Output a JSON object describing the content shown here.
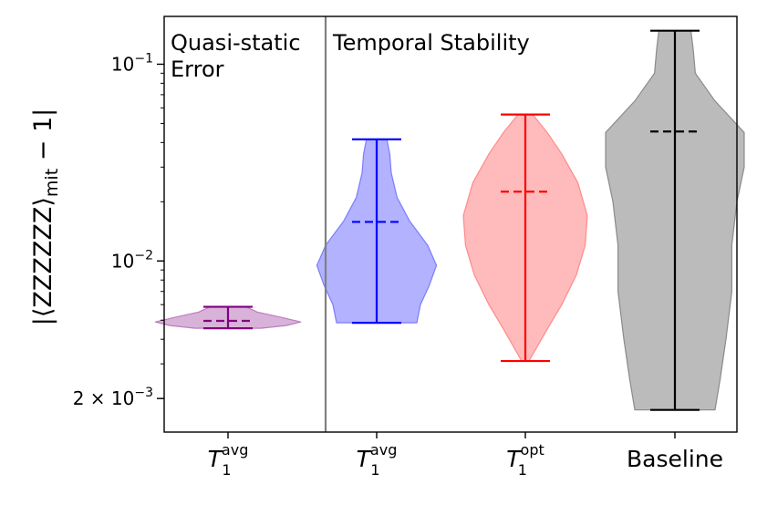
{
  "chart_data": {
    "type": "violin",
    "ylabel": "|⟨ZZZZZZ⟩",
    "ylabel_sub": "mit",
    "ylabel_tail": " − 1|",
    "yscale": "log",
    "ylim": [
      0.00135,
      0.175
    ],
    "yticks": [
      {
        "value": 0.1,
        "mant": "",
        "base": "10",
        "exp": "−1"
      },
      {
        "value": 0.01,
        "mant": "",
        "base": "10",
        "exp": "−2"
      },
      {
        "value": 0.002,
        "mant": "2 × ",
        "base": "10",
        "exp": "−3"
      }
    ],
    "sections": [
      {
        "label_lines": [
          "Quasi-static",
          "Error"
        ]
      },
      {
        "label_lines": [
          "Temporal Stability"
        ]
      }
    ],
    "categories": [
      {
        "main": "T",
        "sub": "1",
        "sup": "avg"
      },
      {
        "main": "T",
        "sub": "1",
        "sup": "avg"
      },
      {
        "main": "T",
        "sub": "1",
        "sup": "opt"
      },
      {
        "main": "Baseline",
        "sub": "",
        "sup": ""
      }
    ],
    "series": [
      {
        "name": "Quasi-static T1 avg",
        "color": "#800080",
        "fill": "#b366b3",
        "min": 0.00455,
        "max": 0.00585,
        "mean": 0.00496,
        "profile": [
          [
            0.00455,
            0.45
          ],
          [
            0.0047,
            0.8
          ],
          [
            0.0049,
            1.0
          ],
          [
            0.0052,
            0.7
          ],
          [
            0.0055,
            0.4
          ],
          [
            0.00585,
            0.25
          ]
        ]
      },
      {
        "name": "Temporal T1 avg",
        "color": "#0000ff",
        "fill": "#6666ff",
        "min": 0.00485,
        "max": 0.0415,
        "mean": 0.0158,
        "profile": [
          [
            0.00485,
            0.55
          ],
          [
            0.006,
            0.6
          ],
          [
            0.0075,
            0.72
          ],
          [
            0.0095,
            0.82
          ],
          [
            0.012,
            0.7
          ],
          [
            0.016,
            0.45
          ],
          [
            0.021,
            0.28
          ],
          [
            0.028,
            0.2
          ],
          [
            0.035,
            0.18
          ],
          [
            0.0415,
            0.14
          ]
        ]
      },
      {
        "name": "Temporal T1 opt",
        "color": "#ff0000",
        "fill": "#ff7777",
        "min": 0.0031,
        "max": 0.0555,
        "mean": 0.0225,
        "profile": [
          [
            0.0031,
            0.05
          ],
          [
            0.0045,
            0.3
          ],
          [
            0.006,
            0.5
          ],
          [
            0.0085,
            0.7
          ],
          [
            0.012,
            0.82
          ],
          [
            0.017,
            0.85
          ],
          [
            0.025,
            0.72
          ],
          [
            0.035,
            0.5
          ],
          [
            0.045,
            0.3
          ],
          [
            0.0555,
            0.1
          ]
        ]
      },
      {
        "name": "Baseline",
        "color": "#000000",
        "fill": "#777777",
        "min": 0.00175,
        "max": 0.148,
        "mean": 0.0455,
        "profile": [
          [
            0.00175,
            0.55
          ],
          [
            0.0025,
            0.62
          ],
          [
            0.004,
            0.7
          ],
          [
            0.007,
            0.78
          ],
          [
            0.012,
            0.78
          ],
          [
            0.02,
            0.85
          ],
          [
            0.03,
            0.95
          ],
          [
            0.045,
            0.95
          ],
          [
            0.065,
            0.55
          ],
          [
            0.09,
            0.28
          ],
          [
            0.12,
            0.25
          ],
          [
            0.148,
            0.22
          ]
        ]
      }
    ],
    "colors": {
      "divider": "#808080",
      "axis": "#000000"
    }
  }
}
